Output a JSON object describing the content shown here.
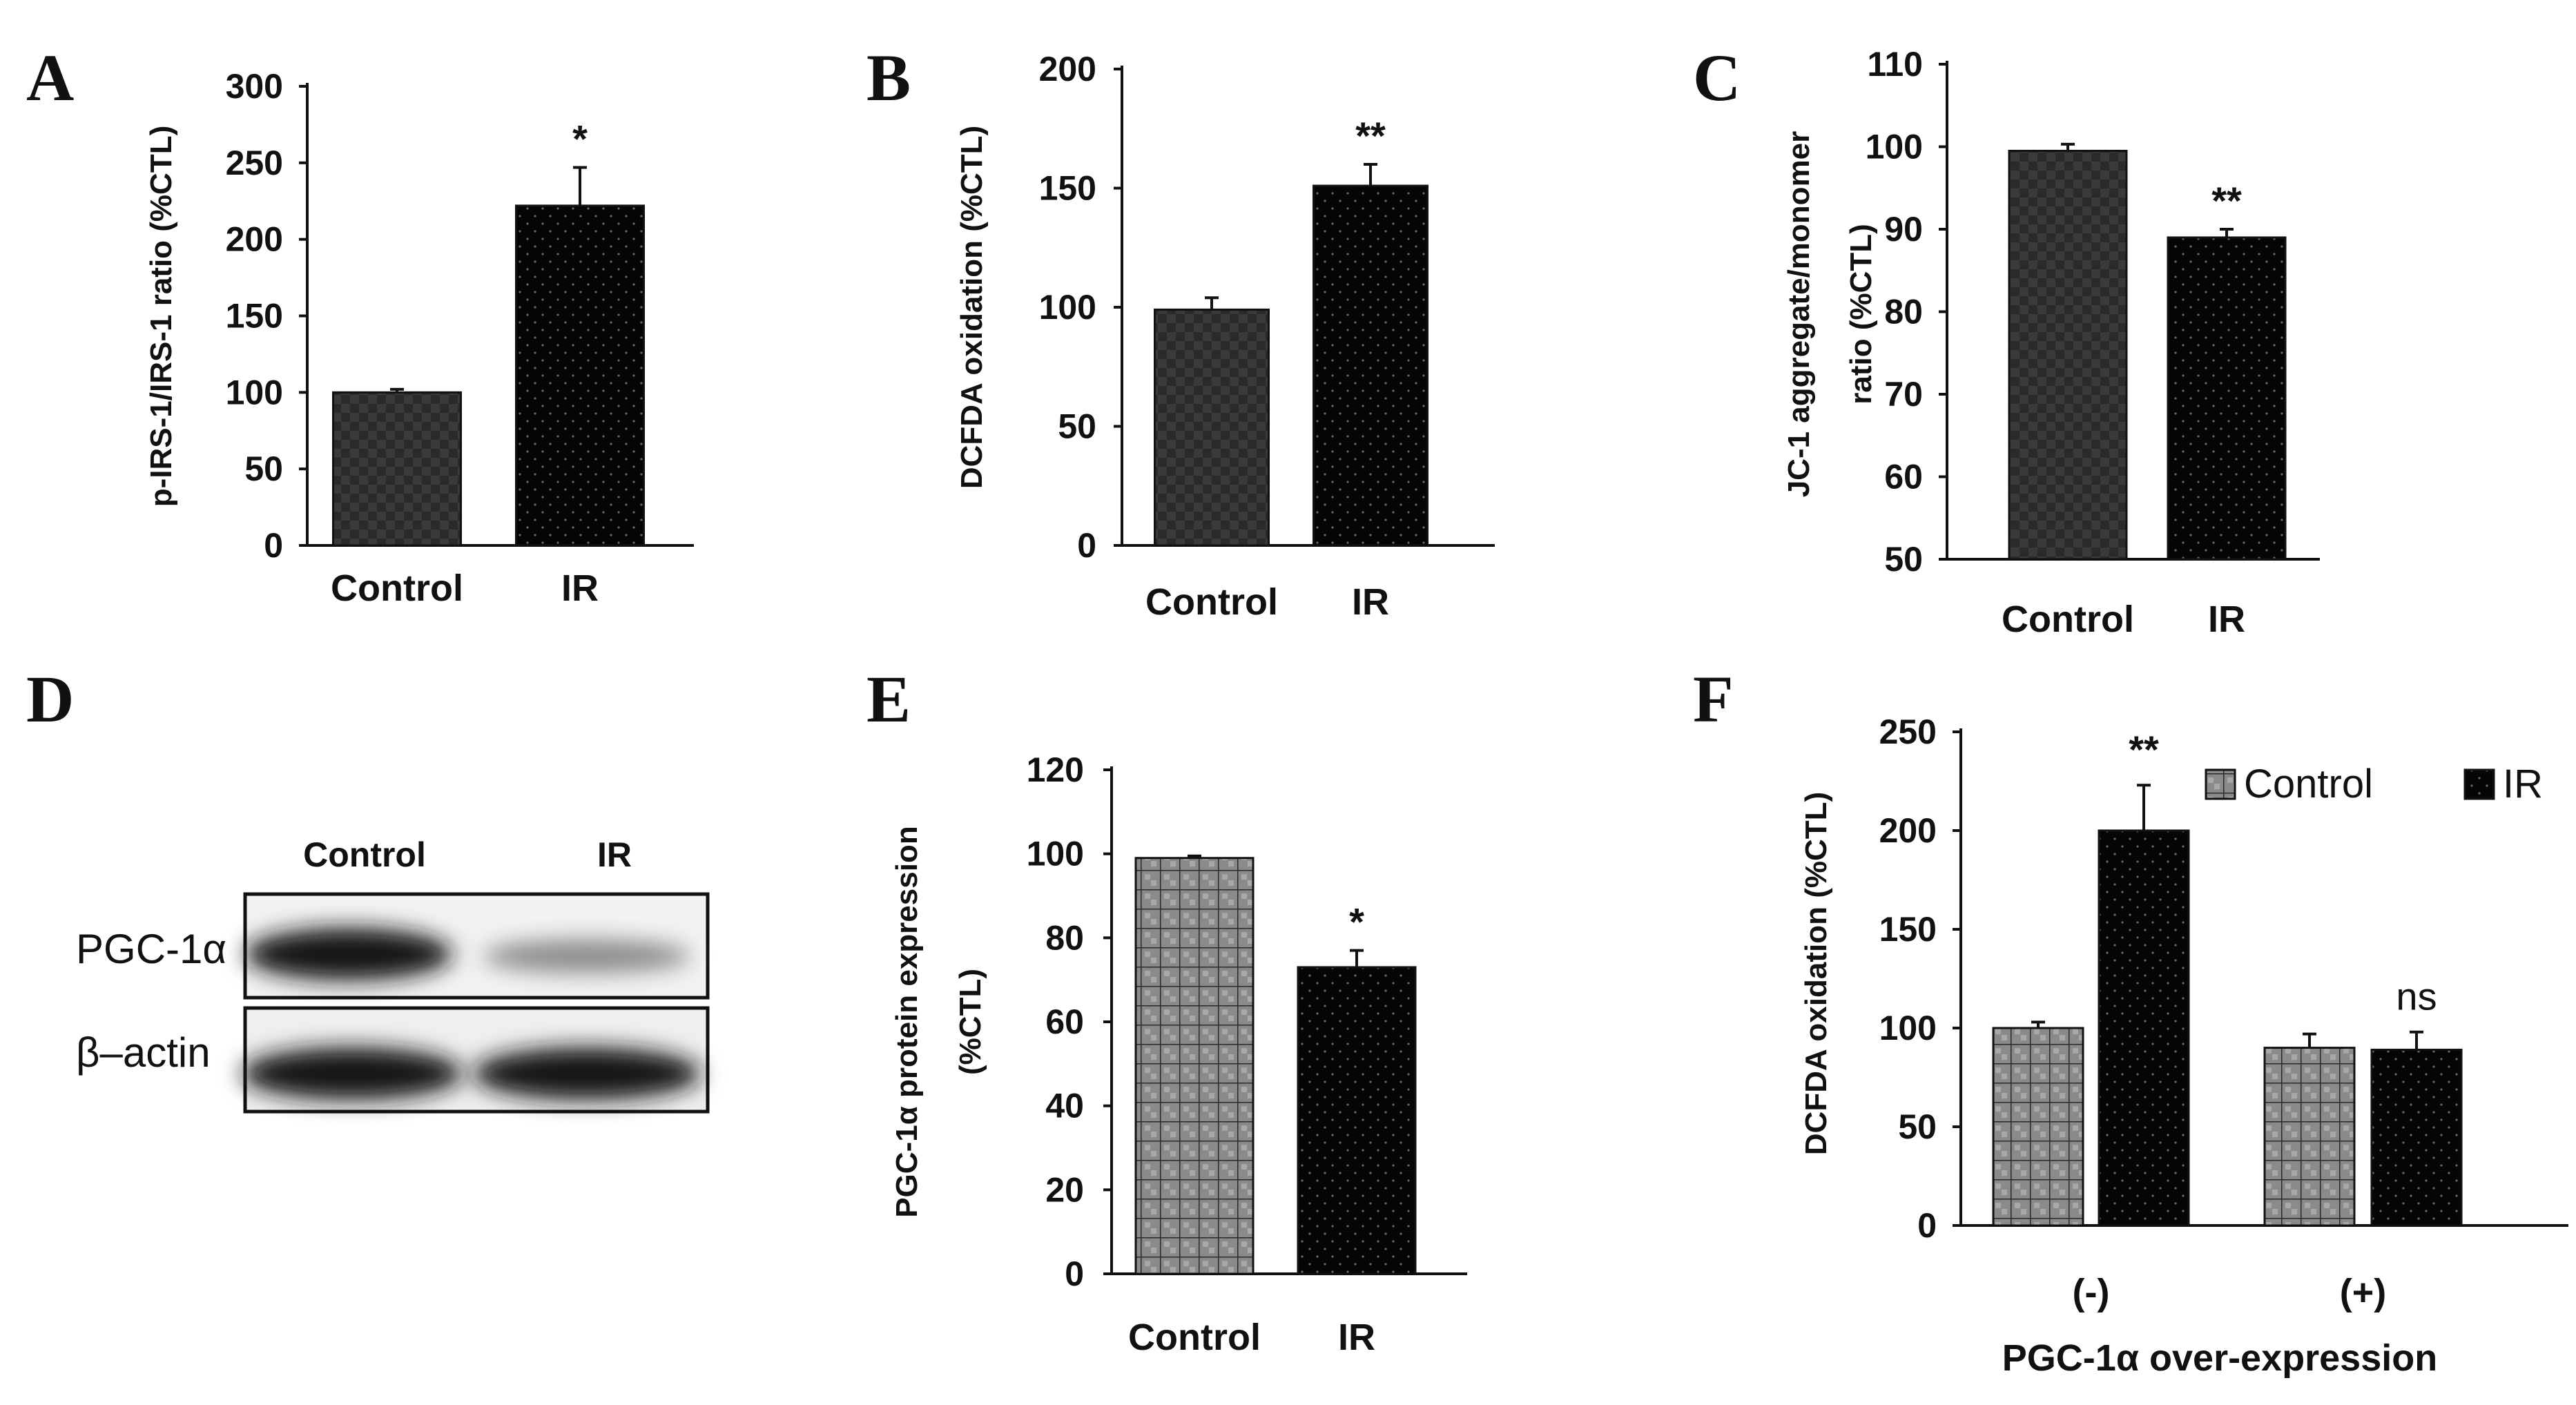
{
  "colors": {
    "control_fill": "#3a3a3a",
    "ir_fill": "#050505",
    "axis": "#111111"
  },
  "chart_data": [
    {
      "panel": "A",
      "type": "bar",
      "categories": [
        "Control",
        "IR"
      ],
      "series": [
        {
          "name": "value",
          "values": [
            100,
            222
          ],
          "errors": [
            2,
            25
          ],
          "sig": [
            "",
            "*"
          ]
        }
      ],
      "ylabel": "p-IRS-1/IRS-1 ratio (%CTL)",
      "ylim": [
        0,
        300
      ],
      "yticks": [
        0,
        50,
        100,
        150,
        200,
        250,
        300
      ]
    },
    {
      "panel": "B",
      "type": "bar",
      "categories": [
        "Control",
        "IR"
      ],
      "series": [
        {
          "name": "value",
          "values": [
            99,
            151
          ],
          "errors": [
            5,
            9
          ],
          "sig": [
            "",
            "**"
          ]
        }
      ],
      "ylabel": "DCFDA oxidation (%CTL)",
      "ylim": [
        0,
        200
      ],
      "yticks": [
        0,
        50,
        100,
        150,
        200
      ]
    },
    {
      "panel": "C",
      "type": "bar",
      "categories": [
        "Control",
        "IR"
      ],
      "series": [
        {
          "name": "value",
          "values": [
            99.5,
            89
          ],
          "errors": [
            0.8,
            1
          ],
          "sig": [
            "",
            "**"
          ]
        }
      ],
      "ylabel_lines": [
        "JC-1 aggregate/monomer",
        "ratio (%CTL)"
      ],
      "ylim": [
        50,
        110
      ],
      "yticks": [
        50,
        60,
        70,
        80,
        90,
        100,
        110
      ]
    },
    {
      "panel": "E",
      "type": "bar",
      "categories": [
        "Control",
        "IR"
      ],
      "series": [
        {
          "name": "value",
          "values": [
            99,
            73
          ],
          "errors": [
            0.5,
            4
          ],
          "sig": [
            "",
            "*"
          ]
        }
      ],
      "ylabel_lines": [
        "PGC-1α protein expression",
        "(%CTL)"
      ],
      "ylim": [
        0,
        120
      ],
      "yticks": [
        0,
        20,
        40,
        60,
        80,
        100,
        120
      ]
    },
    {
      "panel": "F",
      "type": "bar",
      "categories": [
        "(-)",
        "(+)"
      ],
      "series": [
        {
          "name": "Control",
          "values": [
            100,
            90
          ],
          "errors": [
            3,
            7
          ]
        },
        {
          "name": "IR",
          "values": [
            200,
            89
          ],
          "errors": [
            23,
            9
          ]
        }
      ],
      "sig": [
        "**",
        "ns"
      ],
      "ylabel": "DCFDA oxidation (%CTL)",
      "xlabel": "PGC-1α over-expression",
      "legend": [
        "Control",
        "IR"
      ],
      "ylim": [
        0,
        250
      ],
      "yticks": [
        0,
        50,
        100,
        150,
        200,
        250
      ]
    }
  ],
  "blot": {
    "panel": "D",
    "columns": [
      "Control",
      "IR"
    ],
    "rows": [
      "PGC-1α",
      "β–actin"
    ]
  }
}
